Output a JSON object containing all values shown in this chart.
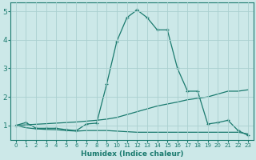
{
  "xlabel": "Humidex (Indice chaleur)",
  "bg_color": "#cce8e8",
  "grid_color": "#aad0d0",
  "line_color": "#1a7a6e",
  "xlim": [
    -0.5,
    23.5
  ],
  "ylim": [
    0.5,
    5.3
  ],
  "yticks": [
    1,
    2,
    3,
    4,
    5
  ],
  "xticks": [
    0,
    1,
    2,
    3,
    4,
    5,
    6,
    7,
    8,
    9,
    10,
    11,
    12,
    13,
    14,
    15,
    16,
    17,
    18,
    19,
    20,
    21,
    22,
    23
  ],
  "series": [
    {
      "x": [
        0,
        1,
        2,
        3,
        4,
        5,
        6,
        7,
        8,
        9,
        10,
        11,
        12,
        13,
        14,
        15,
        16,
        17,
        18,
        19,
        20,
        21,
        22,
        23
      ],
      "y": [
        1.0,
        1.1,
        0.9,
        0.9,
        0.9,
        0.85,
        0.82,
        1.05,
        1.08,
        2.45,
        3.95,
        4.78,
        5.05,
        4.78,
        4.35,
        4.35,
        3.0,
        2.2,
        2.2,
        1.05,
        1.1,
        1.18,
        0.82,
        0.65
      ],
      "marker": true
    },
    {
      "x": [
        0,
        1,
        2,
        3,
        4,
        5,
        6,
        7,
        8,
        9,
        10,
        11,
        12,
        13,
        14,
        15,
        16,
        17,
        18,
        19,
        20,
        21,
        22,
        23
      ],
      "y": [
        1.0,
        1.02,
        1.04,
        1.06,
        1.08,
        1.1,
        1.12,
        1.15,
        1.18,
        1.22,
        1.28,
        1.38,
        1.48,
        1.58,
        1.68,
        1.75,
        1.82,
        1.9,
        1.95,
        2.0,
        2.1,
        2.2,
        2.2,
        2.25
      ],
      "marker": false
    },
    {
      "x": [
        0,
        1,
        2,
        3,
        4,
        5,
        6,
        7,
        8,
        9,
        10,
        11,
        12,
        13,
        14,
        15,
        16,
        17,
        18,
        19,
        20,
        21,
        22,
        23
      ],
      "y": [
        1.0,
        0.92,
        0.88,
        0.86,
        0.85,
        0.82,
        0.8,
        0.82,
        0.82,
        0.82,
        0.8,
        0.78,
        0.76,
        0.76,
        0.76,
        0.76,
        0.76,
        0.76,
        0.76,
        0.76,
        0.76,
        0.76,
        0.76,
        0.7
      ],
      "marker": false
    }
  ]
}
